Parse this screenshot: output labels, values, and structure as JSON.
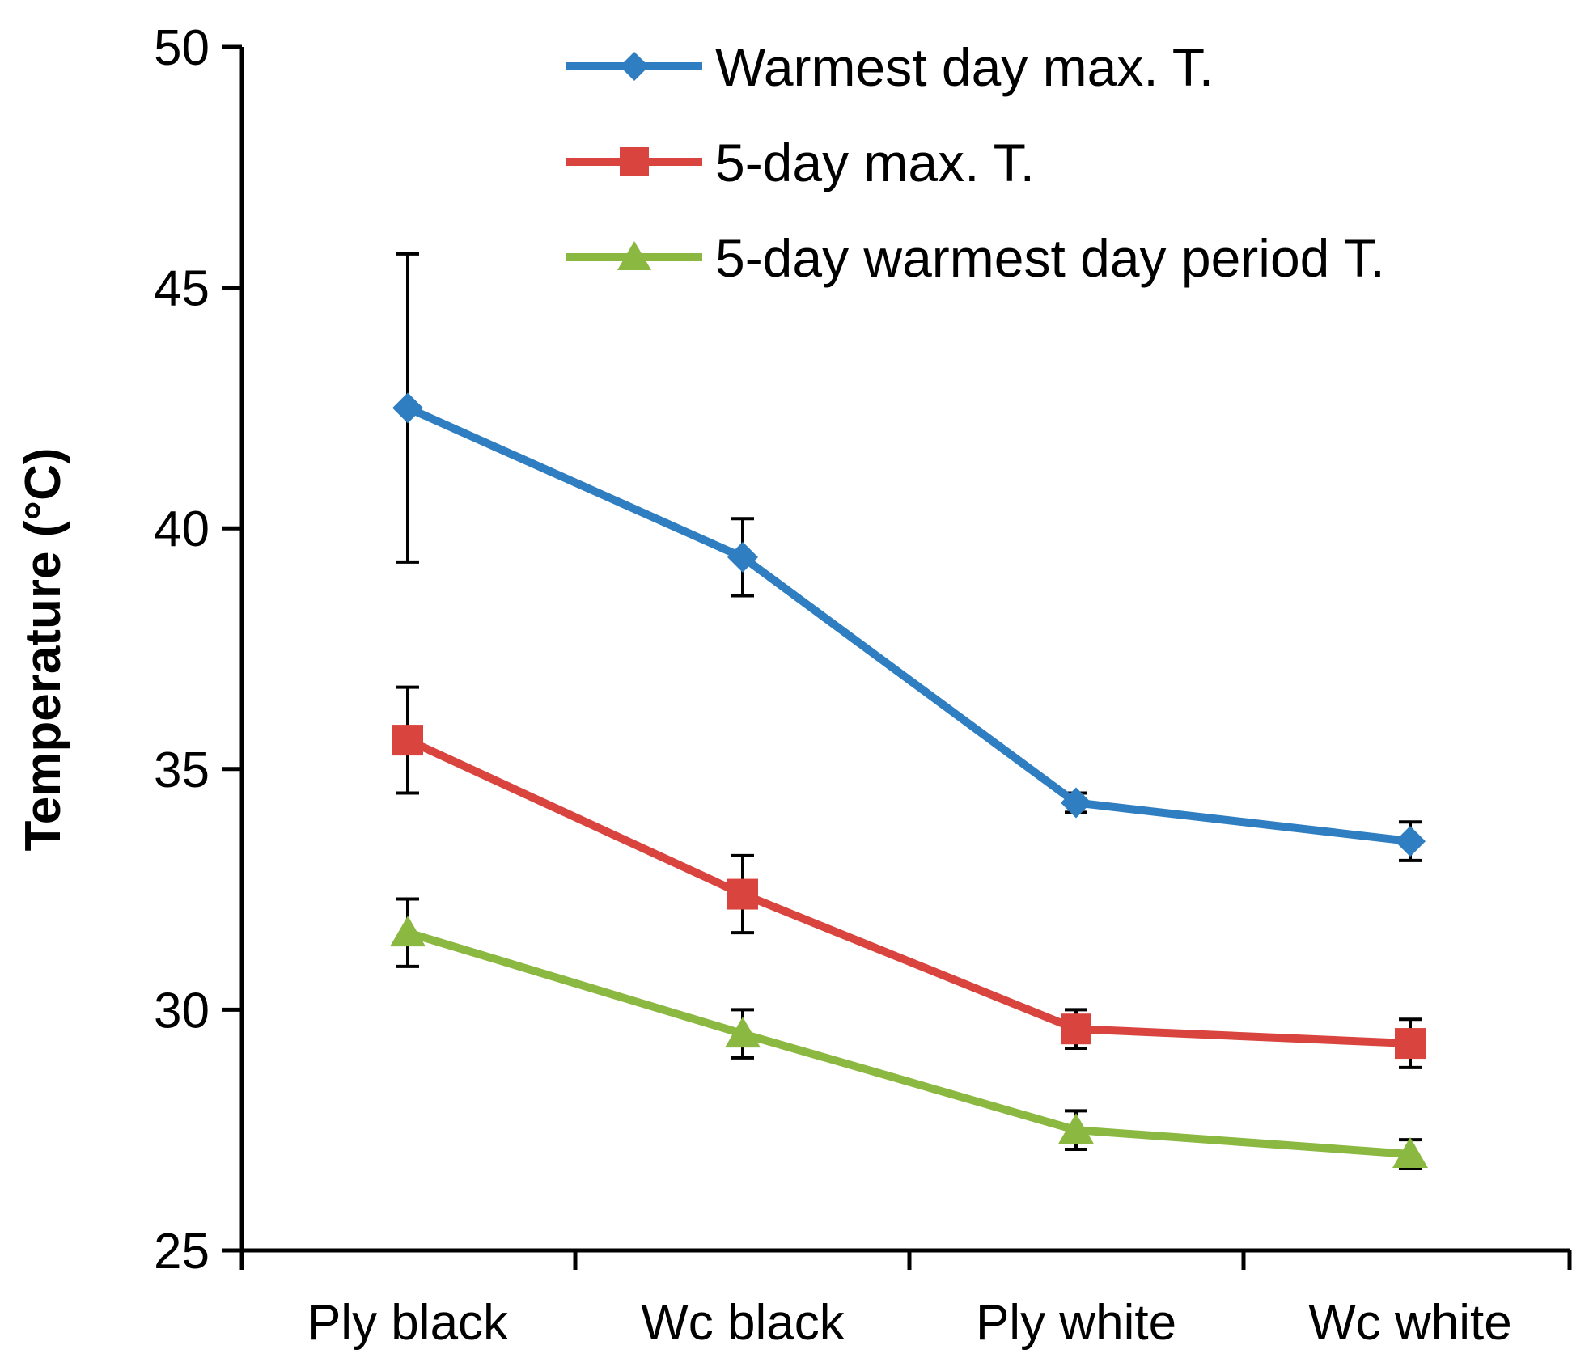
{
  "chart_data": {
    "type": "line",
    "title": "",
    "xlabel": "",
    "ylabel": "Temperature (°C)",
    "ylim": [
      25,
      50
    ],
    "yticks": [
      25,
      30,
      35,
      40,
      45,
      50
    ],
    "ytick_labels": [
      "25",
      "30",
      "35",
      "40",
      "45",
      "50"
    ],
    "categories": [
      "Ply black",
      "Wc black",
      "Ply white",
      "Wc white"
    ],
    "grid": false,
    "legend_position": "top-right",
    "series": [
      {
        "name": "Warmest day max.  T.",
        "color": "#2e7ec1",
        "marker": "diamond",
        "values": [
          42.5,
          39.4,
          34.3,
          33.5
        ],
        "errors": [
          3.2,
          0.8,
          0.2,
          0.4
        ]
      },
      {
        "name": "5-day max. T.",
        "color": "#d9443e",
        "marker": "square",
        "values": [
          35.6,
          32.4,
          29.6,
          29.3
        ],
        "errors": [
          1.1,
          0.8,
          0.4,
          0.5
        ]
      },
      {
        "name": "5-day warmest day period T.",
        "color": "#8bb841",
        "marker": "triangle",
        "values": [
          31.6,
          29.5,
          27.5,
          27.0
        ],
        "errors": [
          0.7,
          0.5,
          0.4,
          0.3
        ]
      }
    ]
  }
}
